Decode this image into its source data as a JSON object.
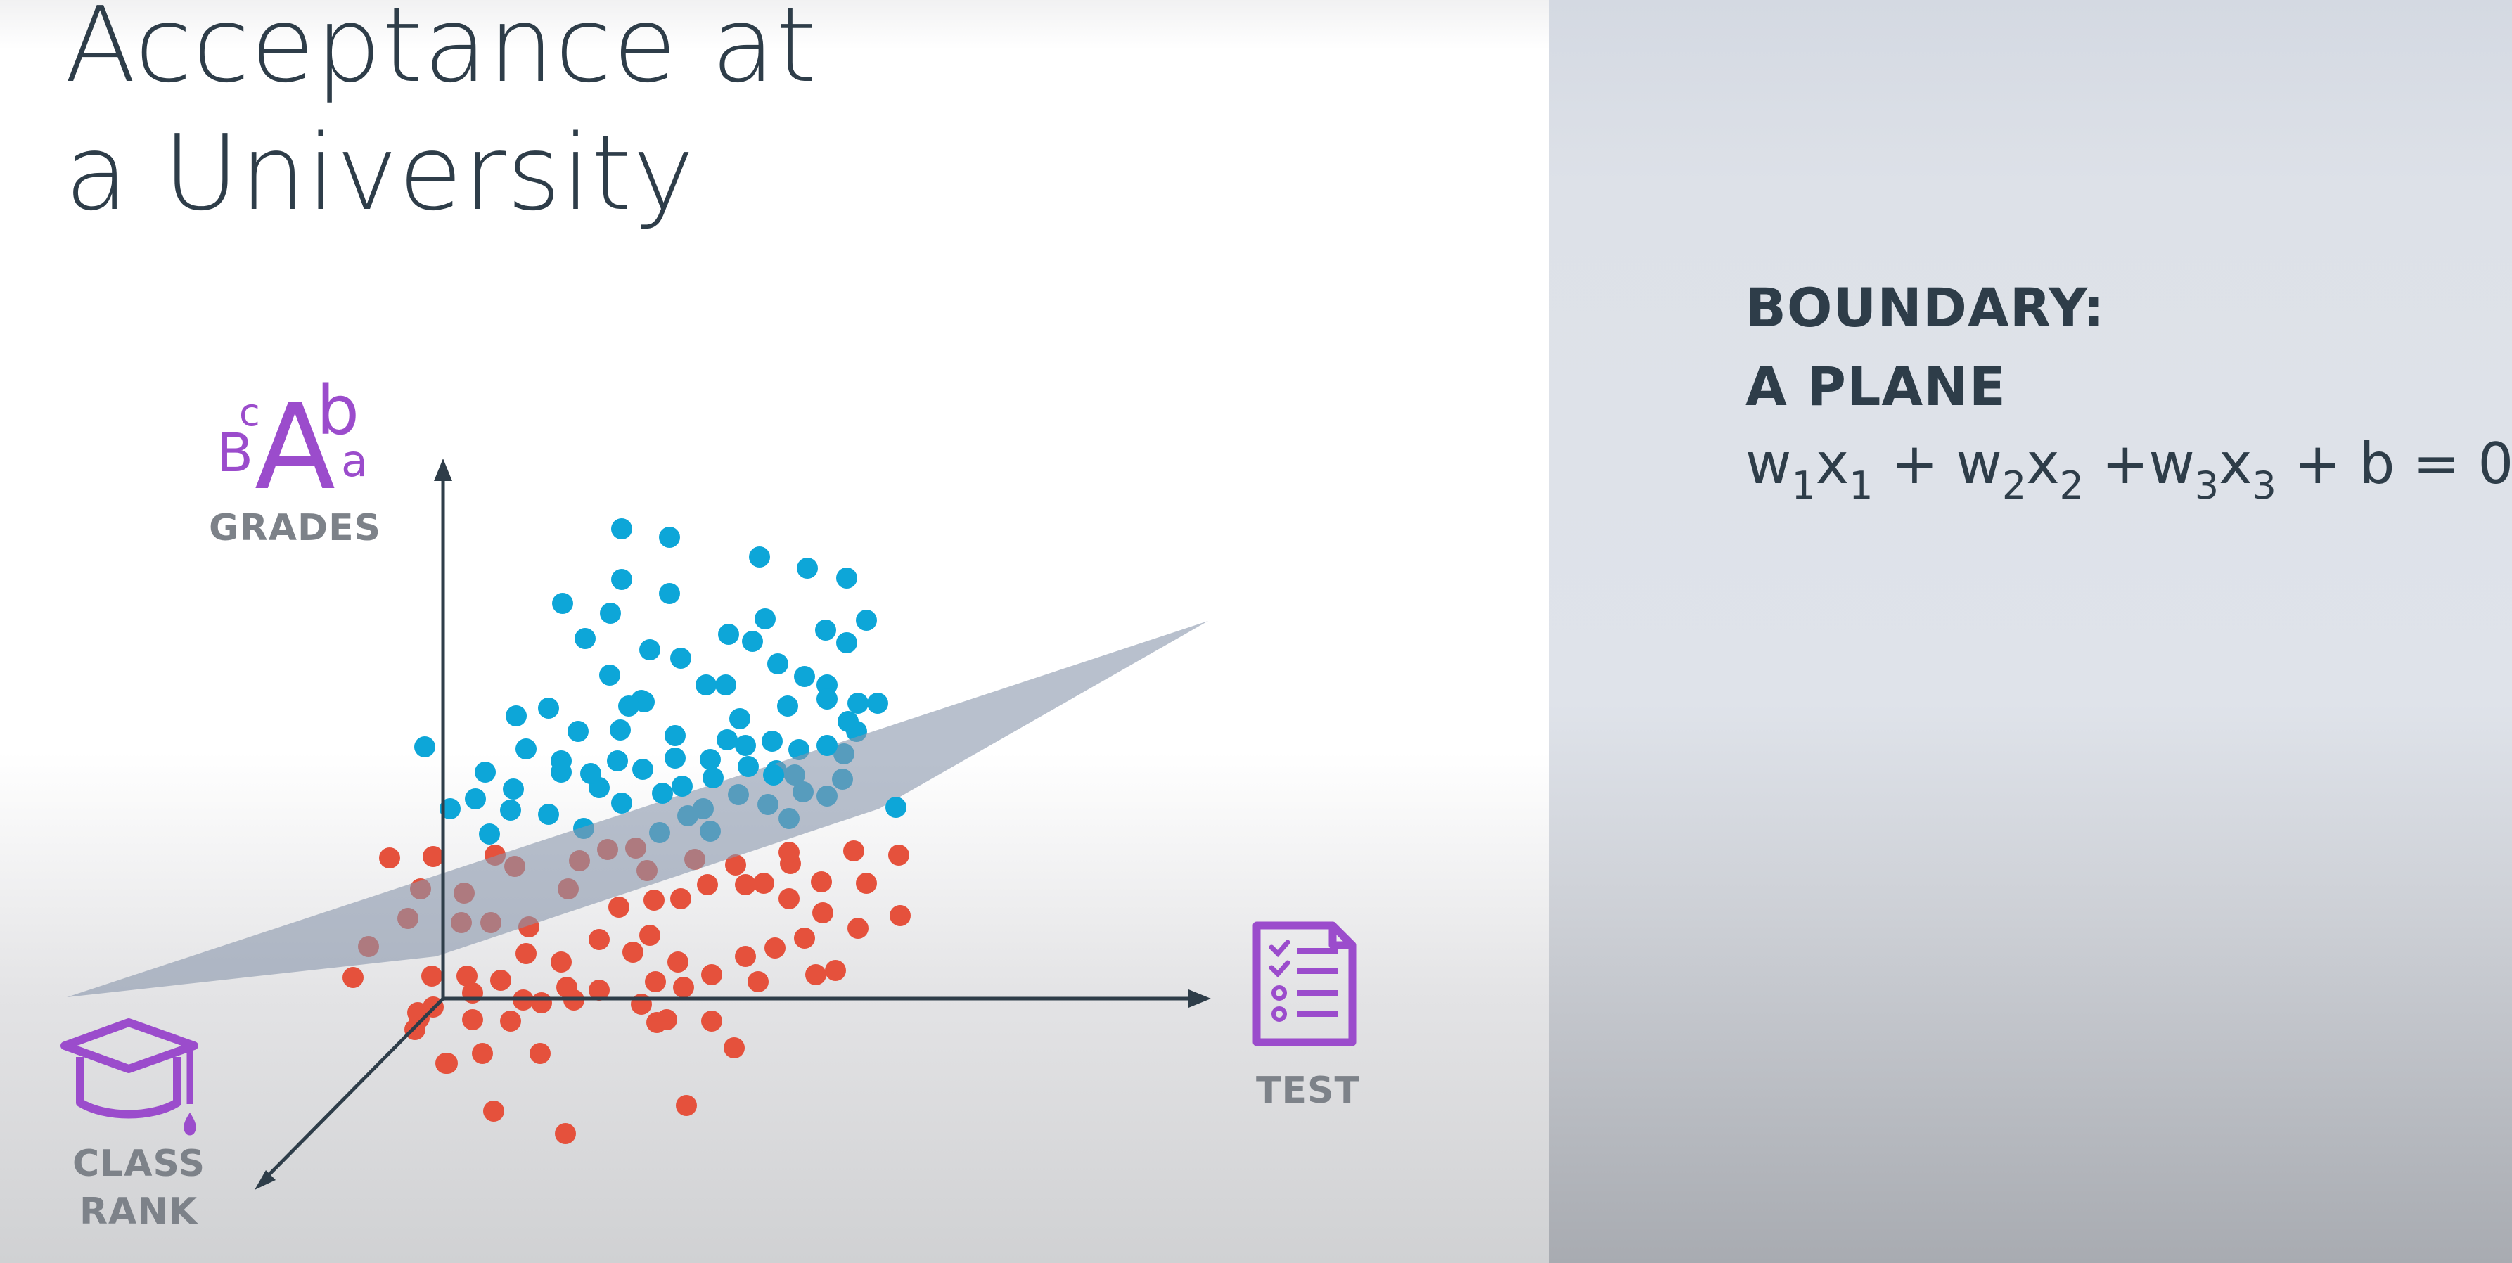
{
  "title": {
    "line1": "Acceptance at",
    "line2": "a University"
  },
  "axes": {
    "grades_label": "GRADES",
    "test_label": "TEST",
    "class_rank_line1": "CLASS",
    "class_rank_line2": "RANK",
    "grades_icon_letters": [
      "B",
      "c",
      "A",
      "b",
      "a"
    ]
  },
  "boundary": {
    "heading_line1": "BOUNDARY:",
    "heading_line2": "A PLANE",
    "equation": [
      {
        "t": "w"
      },
      {
        "s": "1"
      },
      {
        "t": "x"
      },
      {
        "s": "1"
      },
      {
        "t": " + w"
      },
      {
        "s": "2"
      },
      {
        "t": "x"
      },
      {
        "s": "2"
      },
      {
        "t": " +w"
      },
      {
        "s": "3"
      },
      {
        "t": "x"
      },
      {
        "s": "3"
      },
      {
        "t": " + b = 0"
      }
    ]
  },
  "colors": {
    "accepted": "#0da6d8",
    "rejected": "#e5513c",
    "plane": "#8896ab",
    "axis": "#2e3d49",
    "icon": "#9b4ccc",
    "label": "#7d8289",
    "text": "#2e3d49"
  },
  "icons": [
    "graduation-cap-icon",
    "checklist-icon",
    "grades-letters-icon"
  ]
}
